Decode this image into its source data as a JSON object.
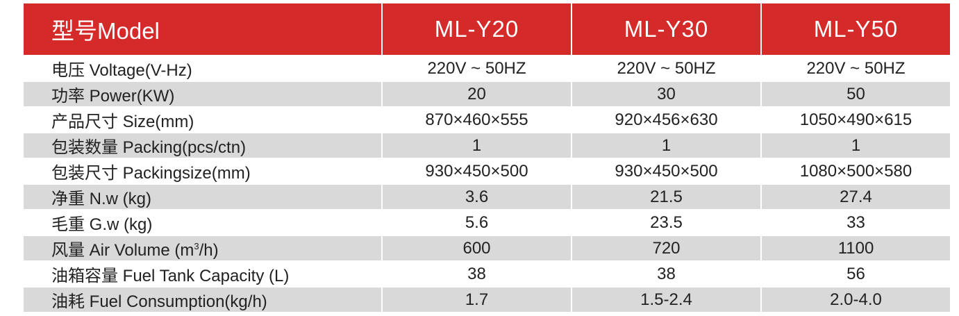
{
  "header": {
    "label": "型号Model",
    "models": [
      "ML-Y20",
      "ML-Y30",
      "ML-Y50"
    ]
  },
  "rows": [
    {
      "label": "电压 Voltage(V-Hz)",
      "values": [
        "220V ~ 50HZ",
        "220V ~ 50HZ",
        "220V ~ 50HZ"
      ]
    },
    {
      "label": "功率 Power(KW)",
      "values": [
        "20",
        "30",
        "50"
      ]
    },
    {
      "label": "产品尺寸 Size(mm)",
      "values": [
        "870×460×555",
        "920×456×630",
        "1050×490×615"
      ]
    },
    {
      "label": "包装数量 Packing(pcs/ctn)",
      "values": [
        "1",
        "1",
        "1"
      ]
    },
    {
      "label": "包装尺寸 Packingsize(mm)",
      "values": [
        "930×450×500",
        "930×450×500",
        "1080×500×580"
      ]
    },
    {
      "label": "净重 N.w (kg)",
      "values": [
        "3.6",
        "21.5",
        "27.4"
      ]
    },
    {
      "label": "毛重 G.w (kg)",
      "values": [
        "5.6",
        "23.5",
        "33"
      ]
    },
    {
      "label_prefix": "风量 Air Volume (m",
      "label_sup": "3",
      "label_suffix": "/h)",
      "values": [
        "600",
        "720",
        "1100"
      ]
    },
    {
      "label": "油箱容量 Fuel Tank Capacity (L)",
      "values": [
        "38",
        "38",
        "56"
      ]
    },
    {
      "label": "油耗 Fuel Consumption(kg/h)",
      "values": [
        "1.7",
        "1.5-2.4",
        "2.0-4.0"
      ]
    }
  ],
  "colors": {
    "header_bg": "#d42a2a",
    "header_text": "#ffffff",
    "stripe": "#d9d9d9",
    "text": "#222222"
  }
}
